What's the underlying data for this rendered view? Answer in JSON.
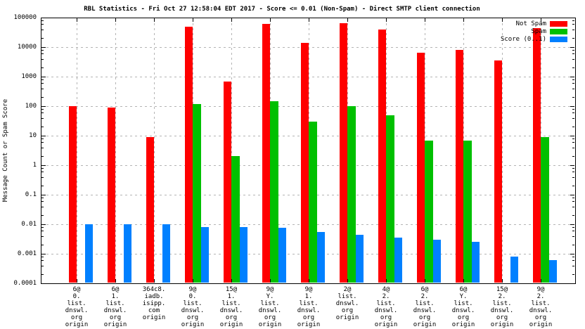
{
  "chart_data": {
    "type": "bar",
    "title": "RBL Statistics - Fri Oct 27 12:58:04 EDT 2017 - Score <= 0.01 (Non-Spam) - Direct SMTP client connection",
    "ylabel": "Message Count or Spam Score",
    "xlabel": "",
    "y_scale": "log",
    "ylim": [
      0.0001,
      100000
    ],
    "grid": true,
    "legend_position": "top-right-inside",
    "ytick_labels": [
      "100000",
      "10000",
      "1000",
      "100",
      "10",
      "1",
      "0.1",
      "0.01",
      "0.001",
      "0.0001"
    ],
    "categories": [
      [
        "6@",
        "0.",
        "list.",
        "dnswl.",
        "org",
        "origin"
      ],
      [
        "6@",
        "1.",
        "list.",
        "dnswl.",
        "org",
        "origin"
      ],
      [
        "364c8.",
        "iadb.",
        "isipp.",
        "com",
        "origin"
      ],
      [
        "9@",
        "0.",
        "list.",
        "dnswl.",
        "org",
        "origin"
      ],
      [
        "15@",
        "1.",
        "list.",
        "dnswl.",
        "org",
        "origin"
      ],
      [
        "9@",
        "Y.",
        "list.",
        "dnswl.",
        "org",
        "origin"
      ],
      [
        "9@",
        "1.",
        "list.",
        "dnswl.",
        "org",
        "origin"
      ],
      [
        "2@",
        "list.",
        "dnswl.",
        "org",
        "origin"
      ],
      [
        "4@",
        "2.",
        "list.",
        "dnswl.",
        "org",
        "origin"
      ],
      [
        "6@",
        "2.",
        "list.",
        "dnswl.",
        "org",
        "origin"
      ],
      [
        "6@",
        "Y.",
        "list.",
        "dnswl.",
        "org",
        "origin"
      ],
      [
        "15@",
        "2.",
        "list.",
        "dnswl.",
        "org",
        "origin"
      ],
      [
        "9@",
        "2.",
        "list.",
        "dnswl.",
        "org",
        "origin"
      ]
    ],
    "series": [
      {
        "name": "Not Spam",
        "color": "#ff0000",
        "values": [
          100,
          90,
          9,
          50000,
          700,
          60000,
          14000,
          65000,
          40000,
          6500,
          8000,
          3500,
          45000
        ]
      },
      {
        "name": "Spam",
        "color": "#00c000",
        "values": [
          null,
          null,
          null,
          120,
          2,
          150,
          30,
          100,
          50,
          7,
          7,
          null,
          9
        ]
      },
      {
        "name": "Score (0..1)",
        "color": "#0080ff",
        "values": [
          0.01,
          0.01,
          0.01,
          0.008,
          0.008,
          0.0075,
          0.0055,
          0.0045,
          0.0035,
          0.003,
          0.0025,
          0.0008,
          0.0006
        ]
      }
    ]
  }
}
